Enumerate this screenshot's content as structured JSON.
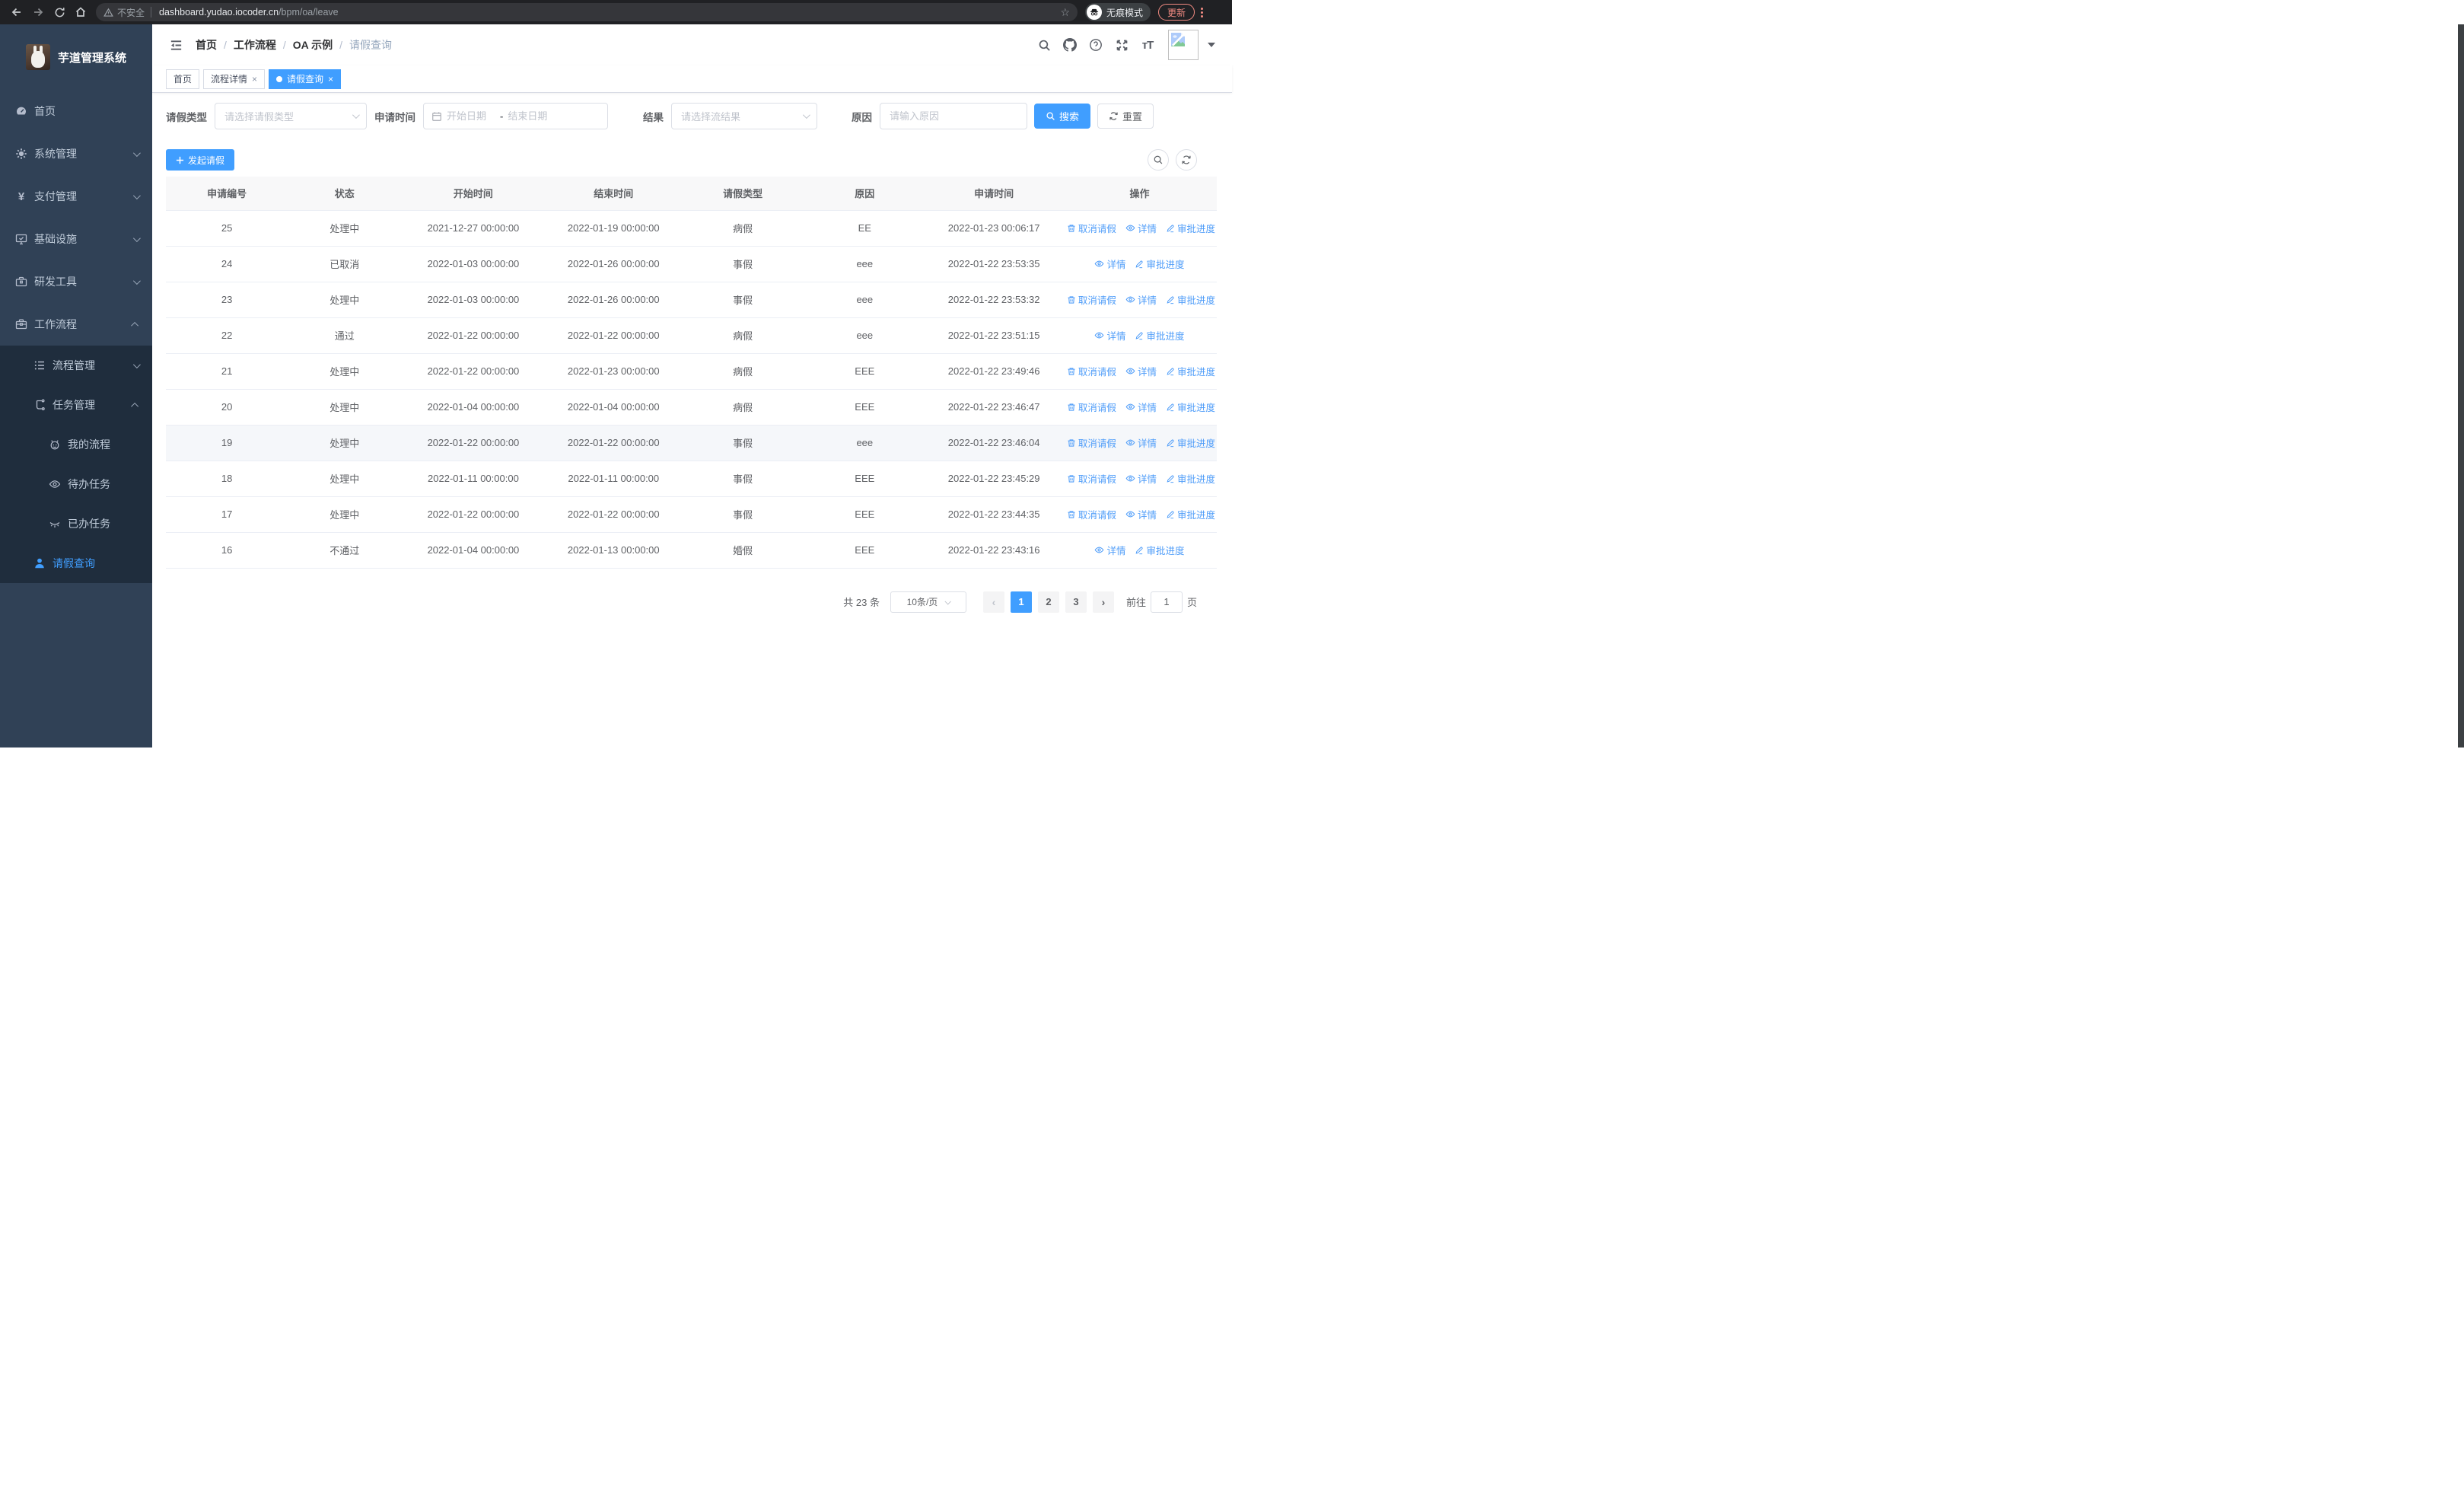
{
  "browser": {
    "security_label": "不安全",
    "url_host": "dashboard.yudao.iocoder.cn",
    "url_path": "/bpm/oa/leave",
    "incognito_label": "无痕模式",
    "update_label": "更新"
  },
  "sidebar": {
    "title": "芋道管理系统",
    "items": [
      {
        "label": "首页",
        "icon": "dashboard-icon"
      },
      {
        "label": "系统管理",
        "icon": "gear-icon",
        "arrow": "down"
      },
      {
        "label": "支付管理",
        "icon": "yen-icon",
        "arrow": "down"
      },
      {
        "label": "基础设施",
        "icon": "monitor-icon",
        "arrow": "down"
      },
      {
        "label": "研发工具",
        "icon": "toolbox-icon",
        "arrow": "down"
      },
      {
        "label": "工作流程",
        "icon": "briefcase-icon",
        "arrow": "up",
        "expanded": true,
        "children": [
          {
            "label": "流程管理",
            "icon": "list-icon",
            "arrow": "down"
          },
          {
            "label": "任务管理",
            "icon": "tree-icon",
            "arrow": "up",
            "expanded": true,
            "children": [
              {
                "label": "我的流程",
                "icon": "robot-icon"
              },
              {
                "label": "待办任务",
                "icon": "eye-icon"
              },
              {
                "label": "已办任务",
                "icon": "eye-closed-icon"
              }
            ]
          },
          {
            "label": "请假查询",
            "icon": "user-icon",
            "active": true
          }
        ]
      }
    ]
  },
  "header": {
    "breadcrumb": [
      "首页",
      "工作流程",
      "OA 示例",
      "请假查询"
    ]
  },
  "tabs": [
    {
      "label": "首页",
      "closable": false,
      "active": false
    },
    {
      "label": "流程详情",
      "closable": true,
      "active": false
    },
    {
      "label": "请假查询",
      "closable": true,
      "active": true
    }
  ],
  "filters": {
    "type_label": "请假类型",
    "type_placeholder": "请选择请假类型",
    "time_label": "申请时间",
    "time_start_placeholder": "开始日期",
    "time_separator": "-",
    "time_end_placeholder": "结束日期",
    "result_label": "结果",
    "result_placeholder": "请选择流结果",
    "reason_label": "原因",
    "reason_placeholder": "请输入原因",
    "search_label": "搜索",
    "reset_label": "重置"
  },
  "toolbar": {
    "create_label": "发起请假"
  },
  "table": {
    "columns": [
      "申请编号",
      "状态",
      "开始时间",
      "结束时间",
      "请假类型",
      "原因",
      "申请时间",
      "操作"
    ],
    "action_labels": {
      "cancel": "取消请假",
      "detail": "详情",
      "progress": "审批进度"
    },
    "rows": [
      {
        "id": "25",
        "status": "处理中",
        "start": "2021-12-27 00:00:00",
        "end": "2022-01-19 00:00:00",
        "type": "病假",
        "reason": "EE",
        "apply": "2022-01-23 00:06:17",
        "actions": [
          "cancel",
          "detail",
          "progress"
        ],
        "highlight": false
      },
      {
        "id": "24",
        "status": "已取消",
        "start": "2022-01-03 00:00:00",
        "end": "2022-01-26 00:00:00",
        "type": "事假",
        "reason": "eee",
        "apply": "2022-01-22 23:53:35",
        "actions": [
          "detail",
          "progress"
        ],
        "highlight": false
      },
      {
        "id": "23",
        "status": "处理中",
        "start": "2022-01-03 00:00:00",
        "end": "2022-01-26 00:00:00",
        "type": "事假",
        "reason": "eee",
        "apply": "2022-01-22 23:53:32",
        "actions": [
          "cancel",
          "detail",
          "progress"
        ],
        "highlight": false
      },
      {
        "id": "22",
        "status": "通过",
        "start": "2022-01-22 00:00:00",
        "end": "2022-01-22 00:00:00",
        "type": "病假",
        "reason": "eee",
        "apply": "2022-01-22 23:51:15",
        "actions": [
          "detail",
          "progress"
        ],
        "highlight": false
      },
      {
        "id": "21",
        "status": "处理中",
        "start": "2022-01-22 00:00:00",
        "end": "2022-01-23 00:00:00",
        "type": "病假",
        "reason": "EEE",
        "apply": "2022-01-22 23:49:46",
        "actions": [
          "cancel",
          "detail",
          "progress"
        ],
        "highlight": false
      },
      {
        "id": "20",
        "status": "处理中",
        "start": "2022-01-04 00:00:00",
        "end": "2022-01-04 00:00:00",
        "type": "病假",
        "reason": "EEE",
        "apply": "2022-01-22 23:46:47",
        "actions": [
          "cancel",
          "detail",
          "progress"
        ],
        "highlight": false
      },
      {
        "id": "19",
        "status": "处理中",
        "start": "2022-01-22 00:00:00",
        "end": "2022-01-22 00:00:00",
        "type": "事假",
        "reason": "eee",
        "apply": "2022-01-22 23:46:04",
        "actions": [
          "cancel",
          "detail",
          "progress"
        ],
        "highlight": true
      },
      {
        "id": "18",
        "status": "处理中",
        "start": "2022-01-11 00:00:00",
        "end": "2022-01-11 00:00:00",
        "type": "事假",
        "reason": "EEE",
        "apply": "2022-01-22 23:45:29",
        "actions": [
          "cancel",
          "detail",
          "progress"
        ],
        "highlight": false
      },
      {
        "id": "17",
        "status": "处理中",
        "start": "2022-01-22 00:00:00",
        "end": "2022-01-22 00:00:00",
        "type": "事假",
        "reason": "EEE",
        "apply": "2022-01-22 23:44:35",
        "actions": [
          "cancel",
          "detail",
          "progress"
        ],
        "highlight": false
      },
      {
        "id": "16",
        "status": "不通过",
        "start": "2022-01-04 00:00:00",
        "end": "2022-01-13 00:00:00",
        "type": "婚假",
        "reason": "EEE",
        "apply": "2022-01-22 23:43:16",
        "actions": [
          "detail",
          "progress"
        ],
        "highlight": false
      }
    ]
  },
  "pagination": {
    "total": "共 23 条",
    "size": "10条/页",
    "pages": [
      "1",
      "2",
      "3"
    ],
    "active": "1",
    "goto": "前往",
    "goto_value": "1",
    "unit": "页"
  },
  "colors": {
    "accent": "#409eff",
    "link": "#4f9df9",
    "sidebar_bg": "#304156",
    "submenu_bg": "#1f2d3d",
    "update_red": "#f28b82"
  }
}
